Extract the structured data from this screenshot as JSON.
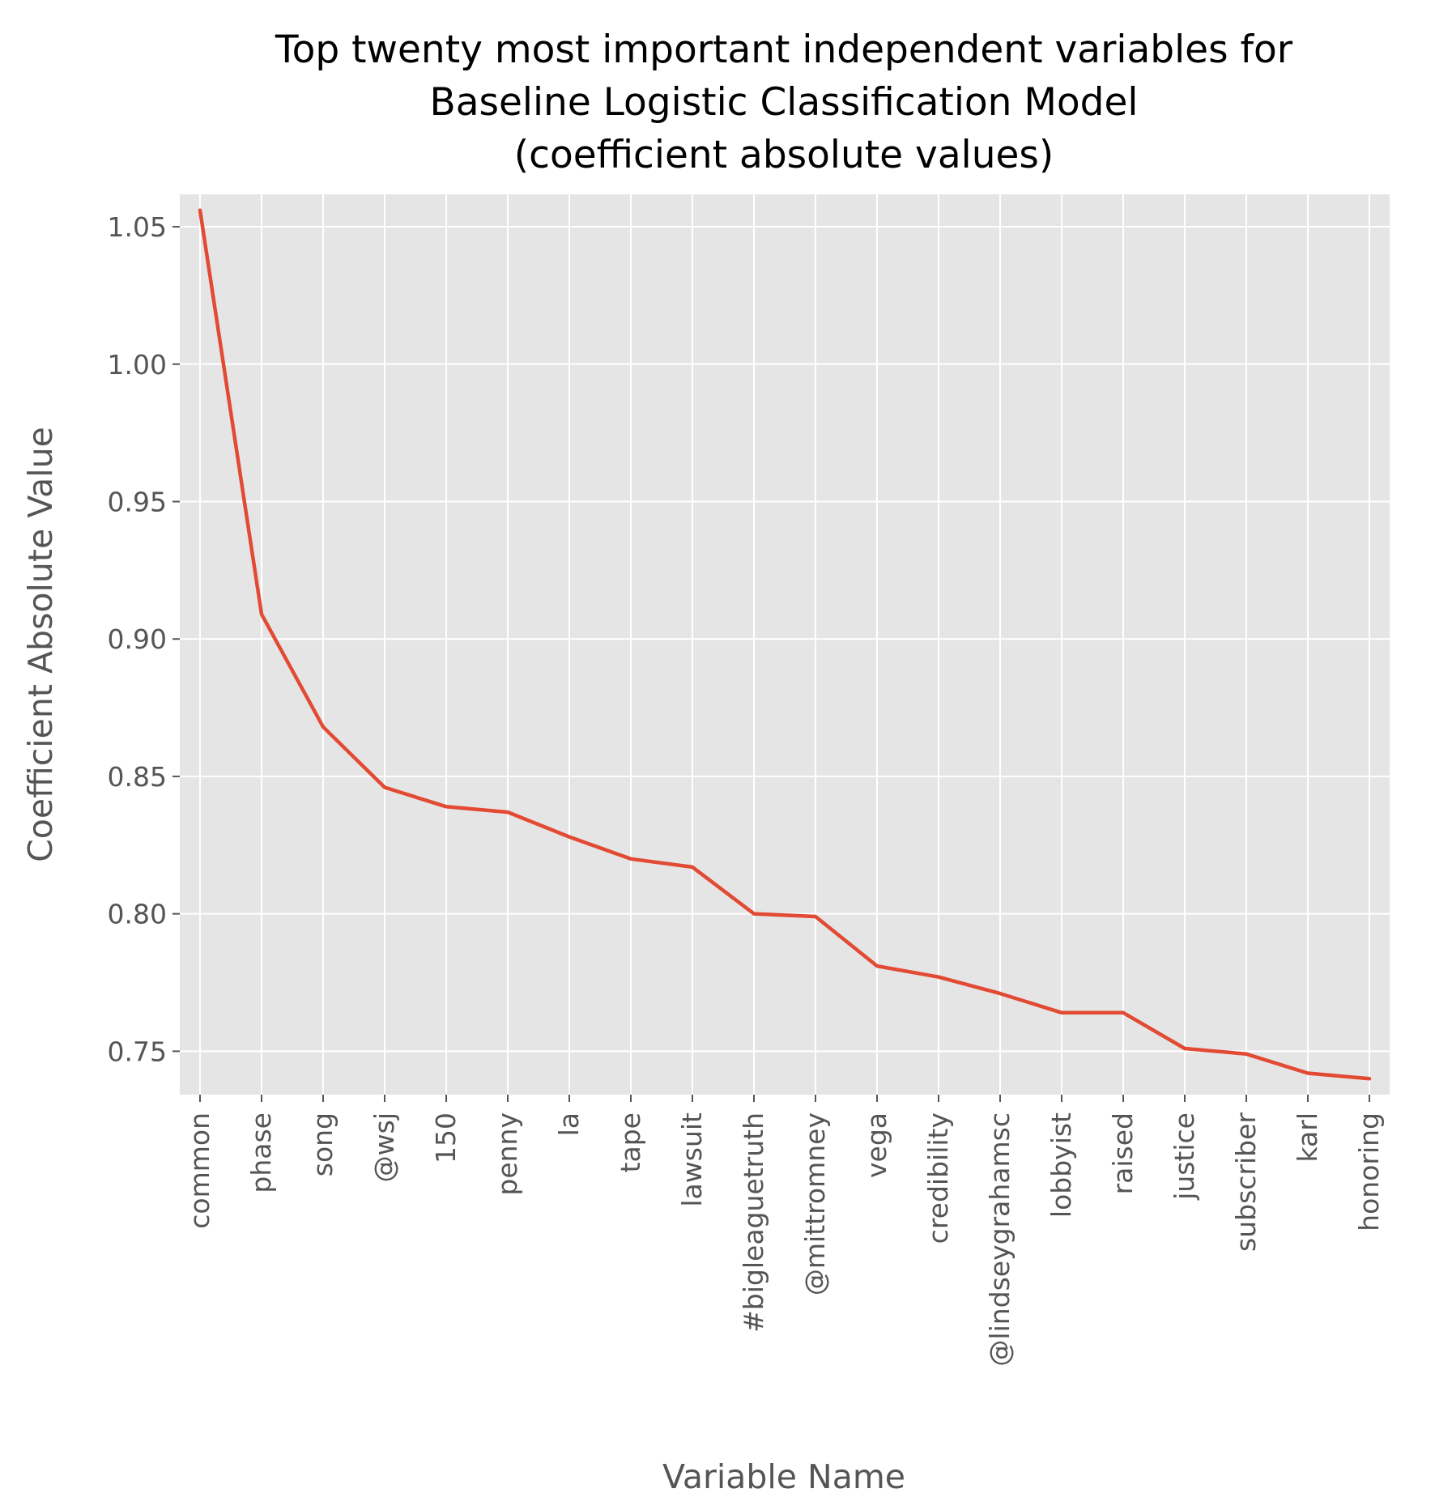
{
  "chart_data": {
    "type": "line",
    "title_lines": [
      "Top twenty most important independent variables for",
      "Baseline Logistic Classification Model",
      "(coefficient absolute values)"
    ],
    "xlabel": "Variable Name",
    "ylabel": "Coefficient Absolute Value",
    "categories": [
      "common",
      "phase",
      "song",
      "@wsj",
      "150",
      "penny",
      "la",
      "tape",
      "lawsuit",
      "#bigleaguetruth",
      "@mittromney",
      "vega",
      "credibility",
      "@lindseygrahamsc",
      "lobbyist",
      "raised",
      "justice",
      "subscriber",
      "karl",
      "honoring"
    ],
    "values": [
      1.056,
      0.909,
      0.868,
      0.846,
      0.839,
      0.837,
      0.828,
      0.82,
      0.817,
      0.8,
      0.799,
      0.781,
      0.777,
      0.771,
      0.764,
      0.764,
      0.751,
      0.749,
      0.742,
      0.74
    ],
    "yticks": [
      0.75,
      0.8,
      0.85,
      0.9,
      0.95,
      1.0,
      1.05
    ],
    "ytick_labels": [
      "0.75",
      "0.80",
      "0.85",
      "0.90",
      "0.95",
      "1.00",
      "1.05"
    ],
    "ylim": [
      0.7342,
      1.0618
    ],
    "grid": true,
    "colors": {
      "line": "#E24A33",
      "background": "#E5E5E5",
      "grid": "#FFFFFF",
      "text": "#555555"
    }
  }
}
